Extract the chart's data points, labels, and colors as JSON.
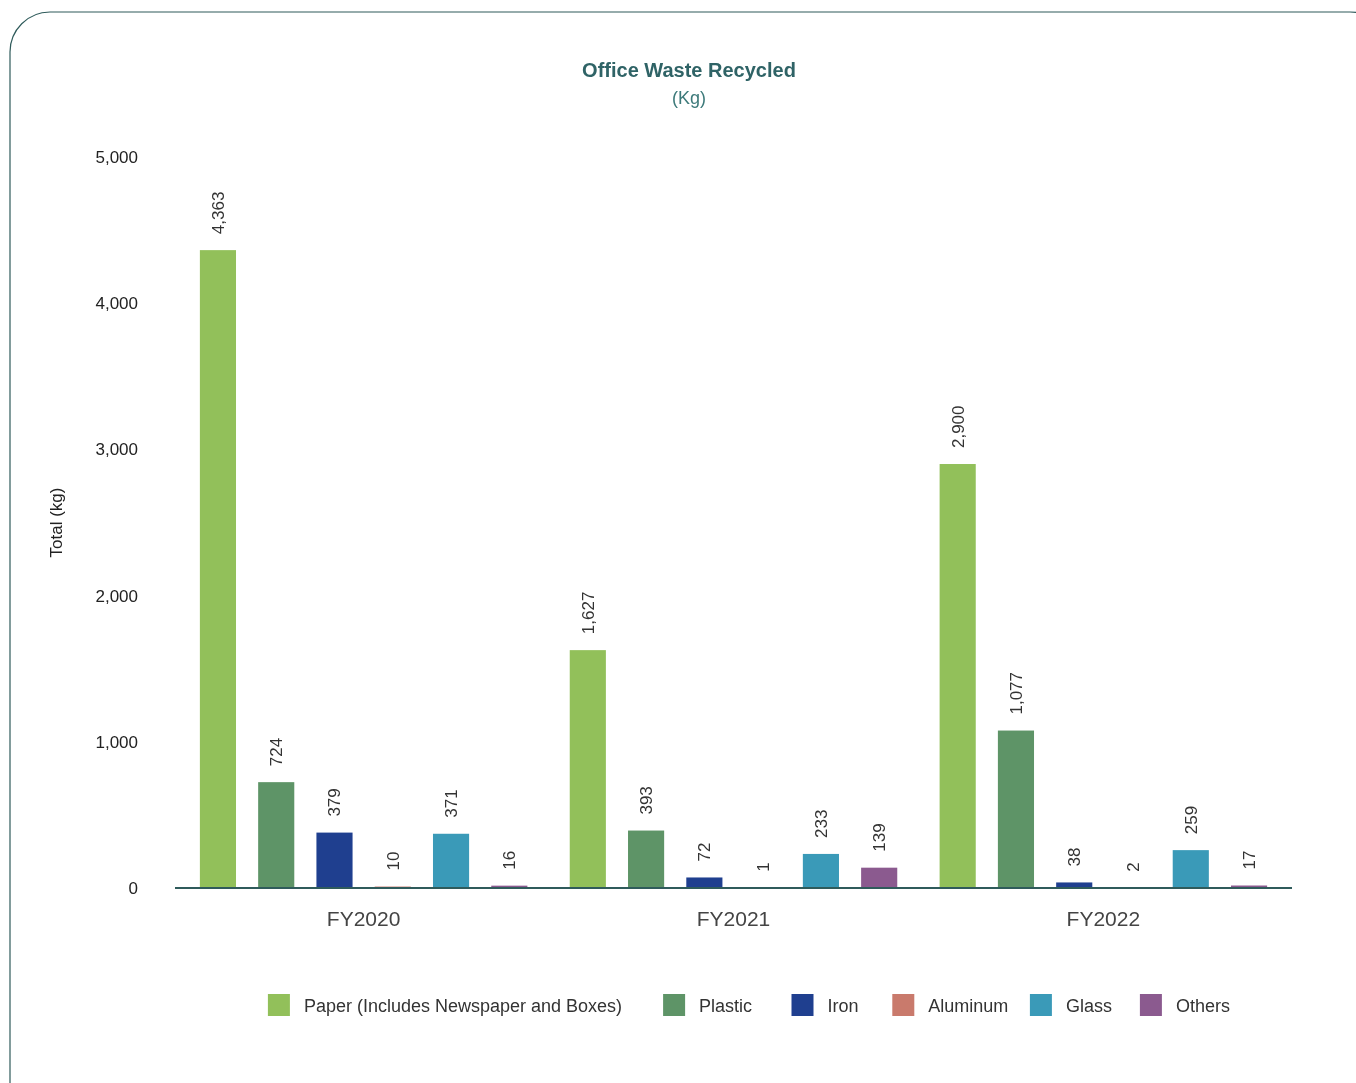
{
  "chart_data": {
    "type": "bar",
    "title": "Office Waste Recycled",
    "subtitle": "(Kg)",
    "ylabel": "Total (kg)",
    "categories": [
      "FY2020",
      "FY2021",
      "FY2022"
    ],
    "series": [
      {
        "name": "Paper (Includes Newspaper and Boxes)",
        "color": "#92c05a",
        "values": [
          4363,
          1627,
          2900
        ],
        "value_labels": [
          "4,363",
          "1,627",
          "2,900"
        ]
      },
      {
        "name": "Plastic",
        "color": "#5e9467",
        "values": [
          724,
          393,
          1077
        ],
        "value_labels": [
          "724",
          "393",
          "1,077"
        ]
      },
      {
        "name": "Iron",
        "color": "#1f3f8f",
        "values": [
          379,
          72,
          38
        ],
        "value_labels": [
          "379",
          "72",
          "38"
        ]
      },
      {
        "name": "Aluminum",
        "color": "#c97a6c",
        "values": [
          10,
          1,
          2
        ],
        "value_labels": [
          "10",
          "1",
          "2"
        ]
      },
      {
        "name": "Glass",
        "color": "#3a9ab8",
        "values": [
          371,
          233,
          259
        ],
        "value_labels": [
          "371",
          "233",
          "259"
        ]
      },
      {
        "name": "Others",
        "color": "#8b5a8f",
        "values": [
          16,
          139,
          17
        ],
        "value_labels": [
          "16",
          "139",
          "17"
        ]
      }
    ],
    "ylim": [
      0,
      5000
    ],
    "yticks": [
      0,
      {
        "value": 1000,
        "label": "1,000"
      },
      {
        "value": 2000,
        "label": "2,000"
      },
      {
        "value": 3000,
        "label": "3,000"
      },
      {
        "value": 4000,
        "label": "4,000"
      },
      {
        "value": 5000,
        "label": "5,000"
      }
    ],
    "legend": "bottom",
    "grid": false
  }
}
